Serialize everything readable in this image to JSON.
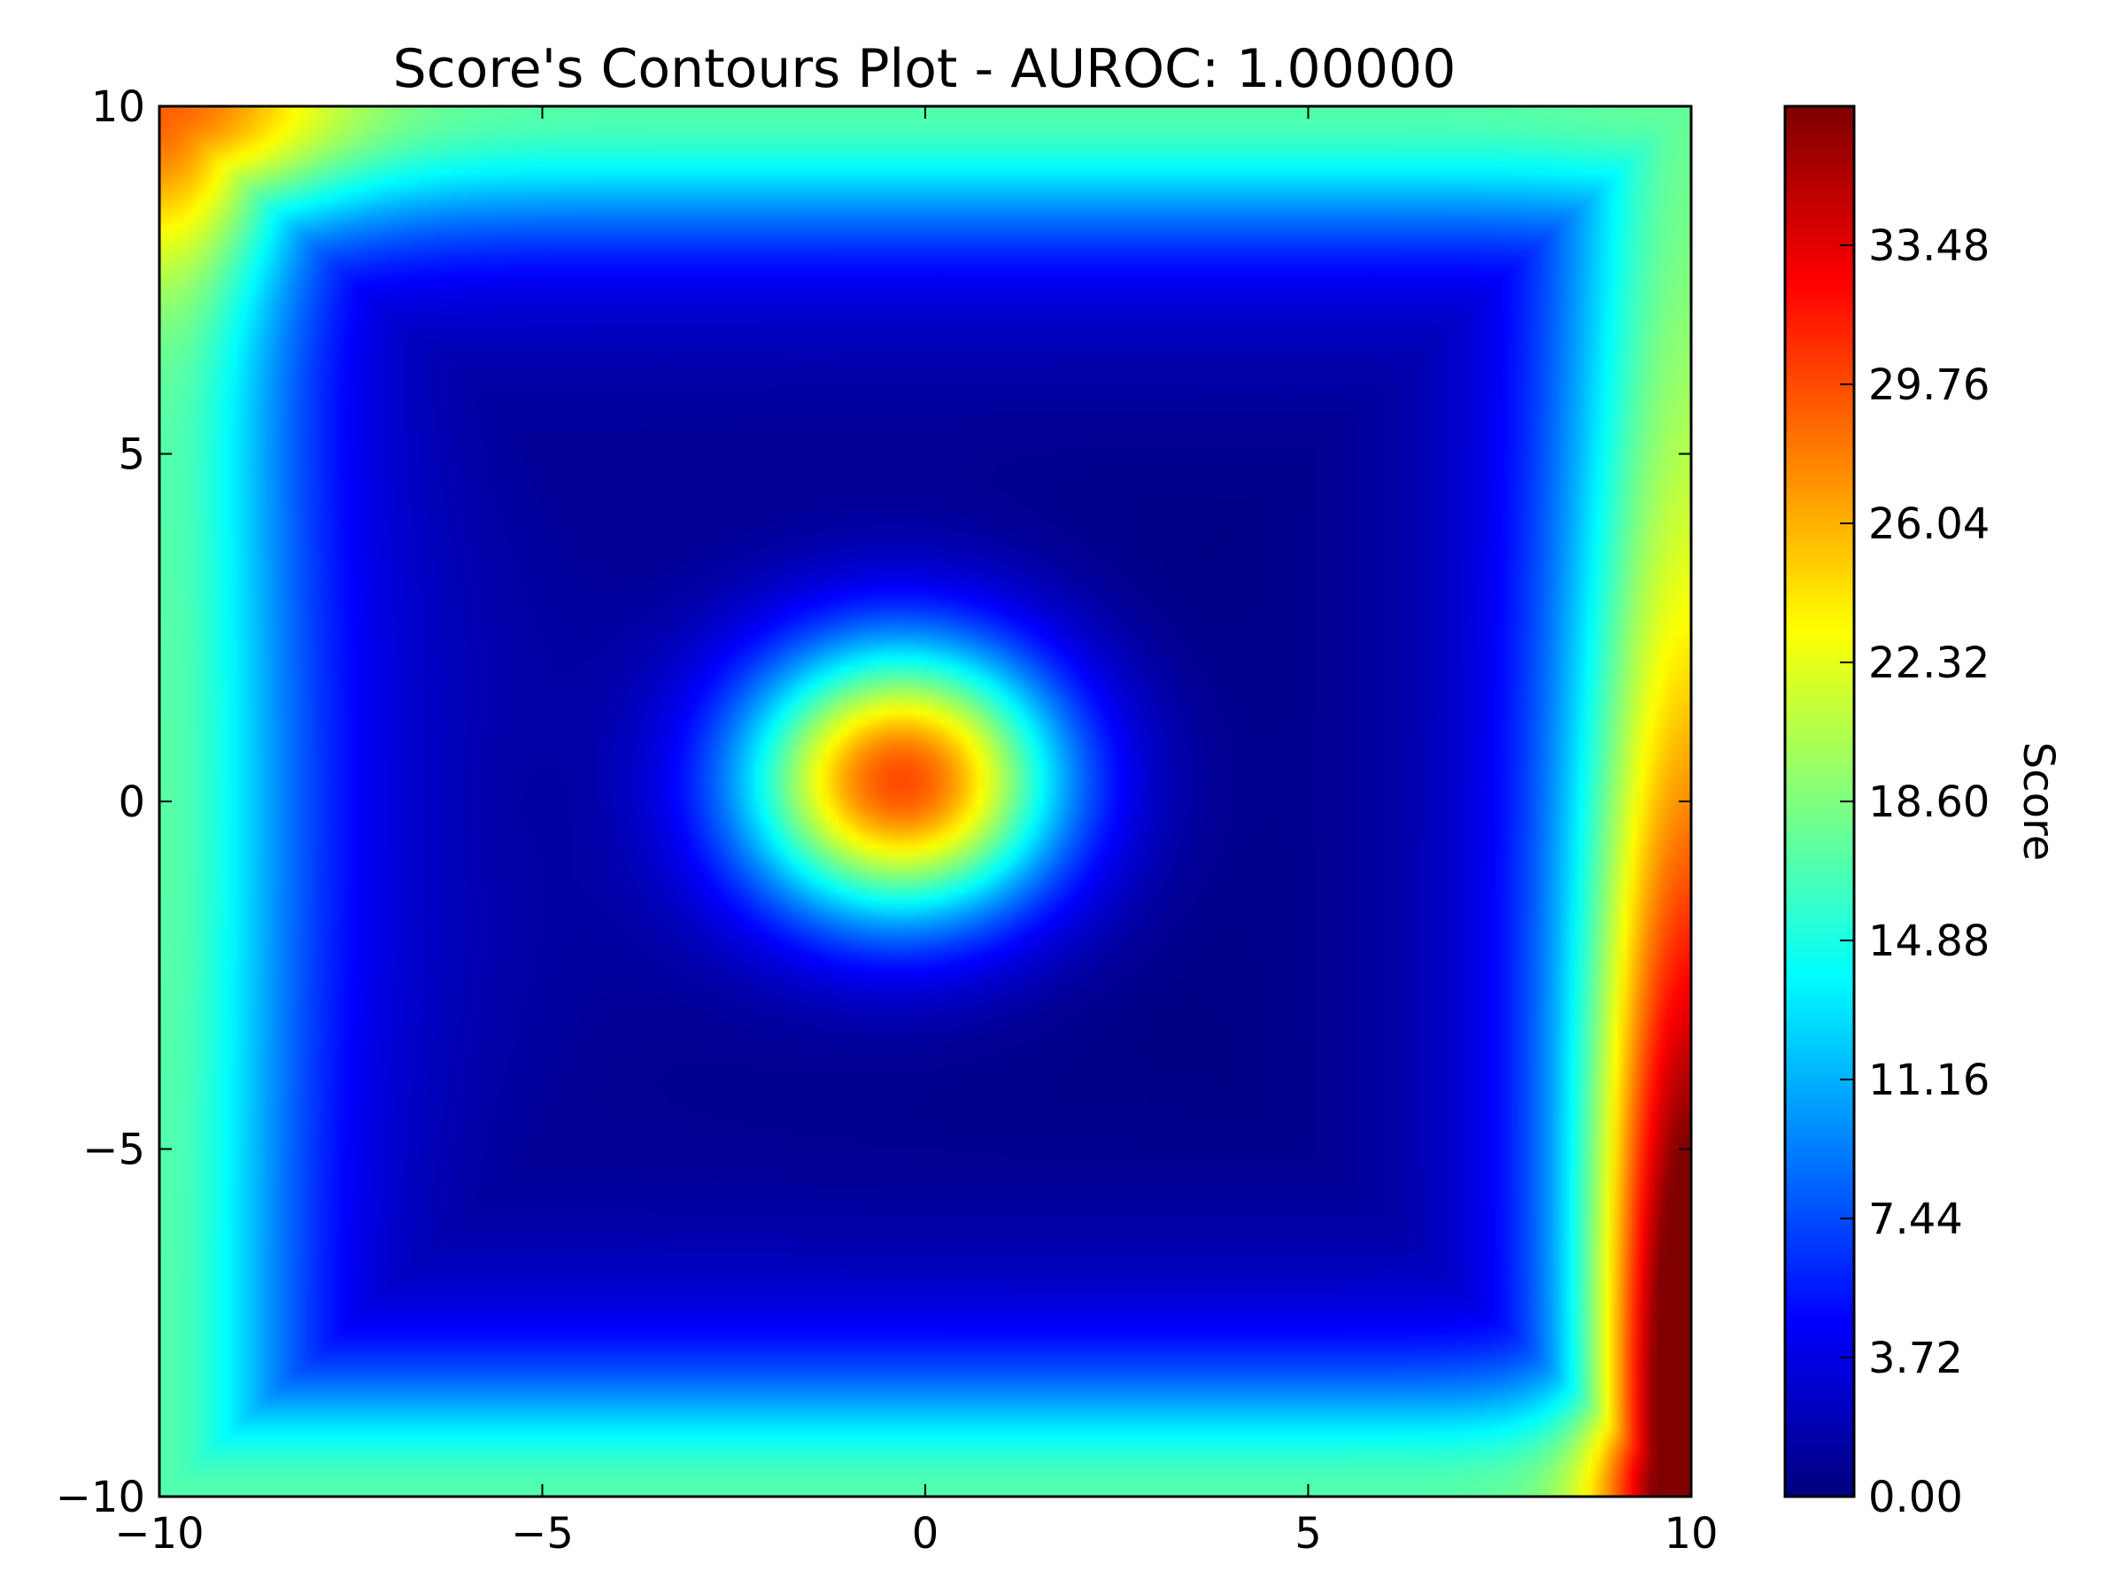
{
  "chart_data": {
    "type": "heatmap",
    "title": "Score's Contours Plot - AUROC: 1.00000",
    "xlim": [
      -10,
      10
    ],
    "ylim": [
      -10,
      10
    ],
    "x_ticks": [
      -10,
      -5,
      0,
      5,
      10
    ],
    "y_ticks": [
      -10,
      -5,
      0,
      5,
      10
    ],
    "x_tick_labels": [
      "−10",
      "−5",
      "0",
      "5",
      "10"
    ],
    "y_tick_labels": [
      "−10",
      "−5",
      "0",
      "5",
      "10"
    ],
    "colormap": "jet",
    "colorbar": {
      "label": "Score",
      "range": [
        0,
        37.2
      ],
      "ticks": [
        0.0,
        3.72,
        7.44,
        11.16,
        14.88,
        18.6,
        22.32,
        26.04,
        29.76,
        33.48
      ],
      "tick_labels": [
        "0.00",
        "3.72",
        "7.44",
        "11.16",
        "14.88",
        "18.60",
        "22.32",
        "26.04",
        "29.76",
        "33.48"
      ]
    },
    "field_samples": [
      {
        "x": -0.3,
        "y": 0.3,
        "score": 29.5
      },
      {
        "x": 0,
        "y": 2.5,
        "score": 14.5
      },
      {
        "x": 0,
        "y": -2,
        "score": 15
      },
      {
        "x": -5,
        "y": 0,
        "score": 1.5
      },
      {
        "x": 5,
        "y": 0,
        "score": 1.5
      },
      {
        "x": 0,
        "y": 6,
        "score": 0.5
      },
      {
        "x": 0,
        "y": -5.5,
        "score": 0.5
      },
      {
        "x": -9.8,
        "y": 9.8,
        "score": 24
      },
      {
        "x": 9.8,
        "y": 9.8,
        "score": 19
      },
      {
        "x": -9.8,
        "y": -9.8,
        "score": 20
      },
      {
        "x": 9.8,
        "y": -9.8,
        "score": 33
      },
      {
        "x": 9.5,
        "y": 0,
        "score": 22
      },
      {
        "x": 0,
        "y": 9.8,
        "score": 11
      },
      {
        "x": 0,
        "y": -9.8,
        "score": 12
      }
    ]
  }
}
